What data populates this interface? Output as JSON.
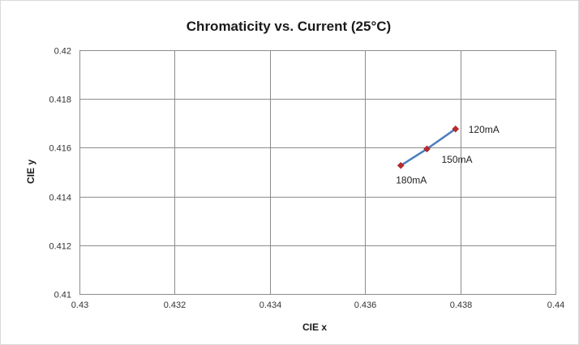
{
  "chart_data": {
    "type": "scatter",
    "title": "Chromaticity vs. Current (25°C)",
    "xlabel": "CIE x",
    "ylabel": "CIE y",
    "xlim": [
      0.43,
      0.44
    ],
    "ylim": [
      0.41,
      0.42
    ],
    "xticks": [
      "0.43",
      "0.432",
      "0.434",
      "0.436",
      "0.438",
      "0.44"
    ],
    "yticks": [
      "0.41",
      "0.412",
      "0.414",
      "0.416",
      "0.418",
      "0.42"
    ],
    "grid": true,
    "legend": "none",
    "series": [
      {
        "points": [
          {
            "x": 0.4379,
            "y": 0.41677,
            "label": "120mA"
          },
          {
            "x": 0.4373,
            "y": 0.41595,
            "label": "150mA"
          },
          {
            "x": 0.43675,
            "y": 0.41527,
            "label": "180mA"
          }
        ]
      }
    ],
    "colors": {
      "line": "#4a7ebb",
      "marker": "#c0282d"
    }
  }
}
